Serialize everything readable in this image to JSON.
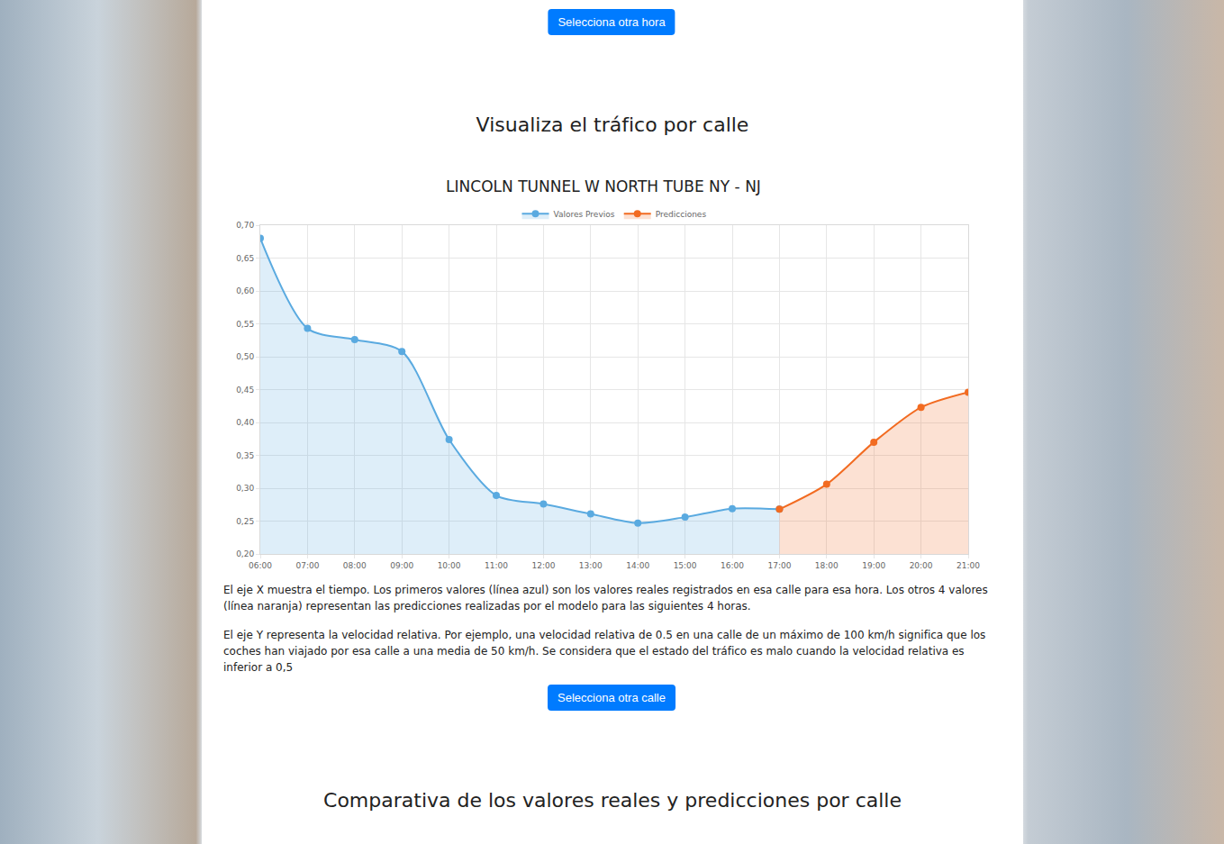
{
  "page": {
    "button_top": "Selecciona otra hora",
    "heading": "Visualiza el tráfico por calle",
    "paragraphs": [
      "El eje X muestra el tiempo. Los primeros valores (línea azul) son los valores reales registrados en esa calle para esa hora. Los otros 4 valores (línea naranja) representan las predicciones realizadas por el modelo para las siguientes 4 horas.",
      "El eje Y representa la velocidad relativa. Por ejemplo, una velocidad relativa de 0.5 en una calle de un máximo de 100 km/h significa que los coches han viajado por esa calle a una media de 50 km/h. Se considera que el estado del tráfico es malo cuando la velocidad relativa es inferior a 0,5"
    ],
    "button_bottom": "Selecciona otra calle",
    "heading_bottom": "Comparativa de los valores reales y predicciones por calle"
  },
  "chart_data": {
    "type": "line",
    "title": "LINCOLN TUNNEL W NORTH TUBE NY - NJ",
    "categories": [
      "06:00",
      "07:00",
      "08:00",
      "09:00",
      "10:00",
      "11:00",
      "12:00",
      "13:00",
      "14:00",
      "15:00",
      "16:00",
      "17:00",
      "18:00",
      "19:00",
      "20:00",
      "21:00"
    ],
    "series": [
      {
        "name": "Valores Previos",
        "color": "#5aaae0",
        "marker": "circle",
        "line_style": "solid",
        "values": [
          0.68,
          0.543,
          0.526,
          0.508,
          0.374,
          0.289,
          0.276,
          0.261,
          0.247,
          0.256,
          0.269,
          0.268,
          null,
          null,
          null,
          null
        ]
      },
      {
        "name": "Predicciones",
        "color": "#f26b21",
        "marker": "circle",
        "line_style": "solid",
        "values": [
          null,
          null,
          null,
          null,
          null,
          null,
          null,
          null,
          null,
          null,
          null,
          0.268,
          0.306,
          0.37,
          0.423,
          0.446
        ]
      }
    ],
    "ylim": [
      0.2,
      0.7
    ],
    "yticks": [
      {
        "value": 0.2,
        "label": "0,20"
      },
      {
        "value": 0.25,
        "label": "0,25"
      },
      {
        "value": 0.3,
        "label": "0,30"
      },
      {
        "value": 0.35,
        "label": "0,35"
      },
      {
        "value": 0.4,
        "label": "0,40"
      },
      {
        "value": 0.45,
        "label": "0,45"
      },
      {
        "value": 0.5,
        "label": "0,50"
      },
      {
        "value": 0.55,
        "label": "0,55"
      },
      {
        "value": 0.6,
        "label": "0,60"
      },
      {
        "value": 0.65,
        "label": "0,65"
      },
      {
        "value": 0.7,
        "label": "0,70"
      }
    ],
    "grid": true,
    "legend": "top"
  }
}
